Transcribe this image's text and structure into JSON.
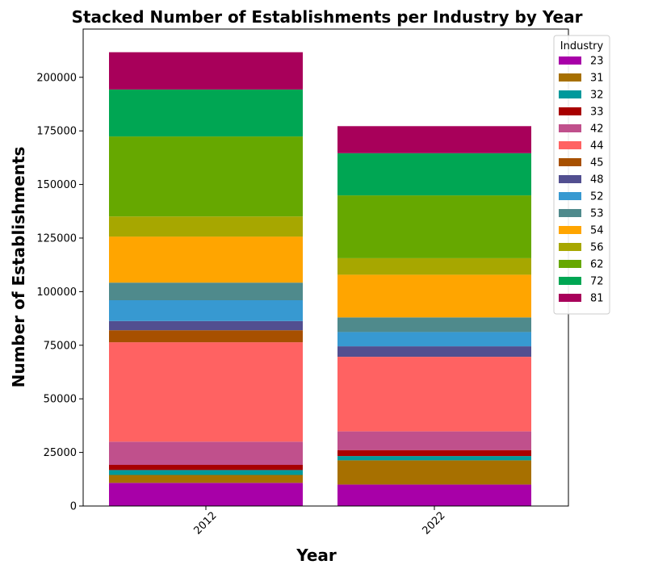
{
  "chart_data": {
    "type": "bar",
    "stacked": true,
    "title": "Stacked Number of Establishments per Industry by Year",
    "xlabel": "Year",
    "ylabel": "Number of Establishments",
    "categories": [
      "2012",
      "2022"
    ],
    "ylim": [
      0,
      222500
    ],
    "yticks": [
      0,
      25000,
      50000,
      75000,
      100000,
      125000,
      150000,
      175000,
      200000
    ],
    "legend_title": "Industry",
    "legend_position": "top-right",
    "grid": false,
    "series": [
      {
        "name": "23",
        "color": "#a800a8",
        "values": [
          10800,
          10000
        ]
      },
      {
        "name": "31",
        "color": "#a77000",
        "values": [
          3700,
          11300
        ]
      },
      {
        "name": "32",
        "color": "#00999c",
        "values": [
          2300,
          2000
        ]
      },
      {
        "name": "33",
        "color": "#a80000",
        "values": [
          2400,
          2800
        ]
      },
      {
        "name": "42",
        "color": "#c0508c",
        "values": [
          10800,
          8700
        ]
      },
      {
        "name": "44",
        "color": "#ff6262",
        "values": [
          46400,
          34800
        ]
      },
      {
        "name": "45",
        "color": "#a75000",
        "values": [
          5600,
          0
        ]
      },
      {
        "name": "48",
        "color": "#524f90",
        "values": [
          4300,
          4900
        ]
      },
      {
        "name": "52",
        "color": "#3799d1",
        "values": [
          9700,
          6700
        ]
      },
      {
        "name": "53",
        "color": "#4f8a8c",
        "values": [
          8200,
          6800
        ]
      },
      {
        "name": "54",
        "color": "#ffa500",
        "values": [
          21500,
          19900
        ]
      },
      {
        "name": "56",
        "color": "#a7a700",
        "values": [
          9400,
          7700
        ]
      },
      {
        "name": "62",
        "color": "#66a800",
        "values": [
          37300,
          29300
        ]
      },
      {
        "name": "72",
        "color": "#00a653",
        "values": [
          21900,
          19700
        ]
      },
      {
        "name": "81",
        "color": "#a8005a",
        "values": [
          17400,
          12600
        ]
      }
    ]
  }
}
